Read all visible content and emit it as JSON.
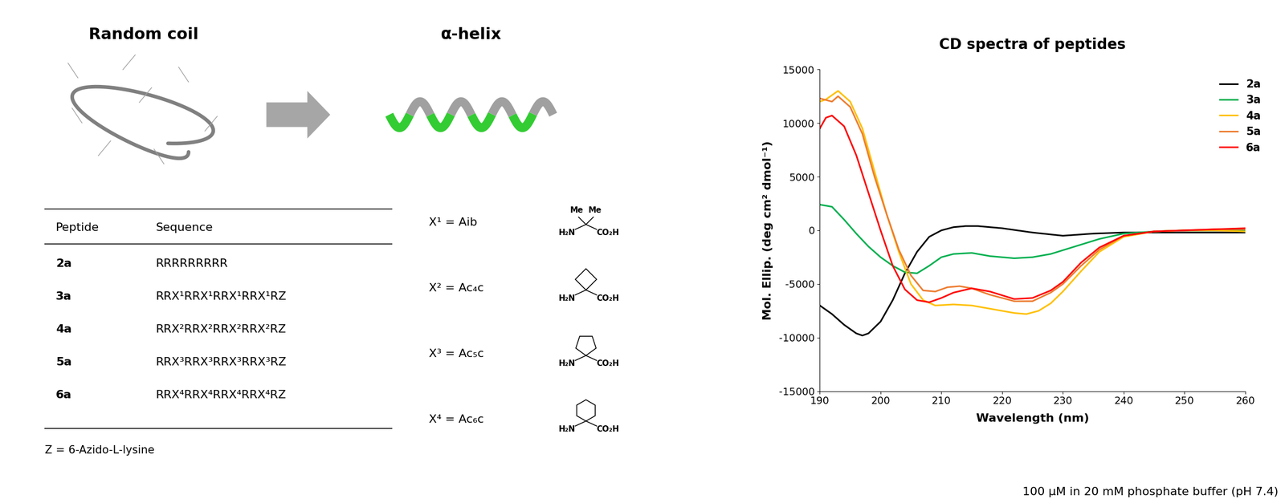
{
  "chart_data": {
    "type": "line",
    "title": "CD spectra of peptides",
    "xlabel": "Wavelength (nm)",
    "ylabel": "Mol. Ellip. (deg cm² dmol⁻¹)",
    "note": "100 µM in 20 mM phosphate buffer (pH 7.4)",
    "xlim": [
      190,
      260
    ],
    "xticks": [
      190,
      200,
      210,
      220,
      230,
      240,
      250,
      260
    ],
    "ylim": [
      -15000,
      15000
    ],
    "yticks": [
      -15000,
      -10000,
      -5000,
      0,
      5000,
      10000,
      15000
    ],
    "grid": false,
    "legend": "upper right",
    "series": [
      {
        "name": "2a",
        "color": "#000000",
        "x": [
          190,
          192,
          194,
          196,
          197,
          198,
          200,
          202,
          204,
          206,
          208,
          210,
          212,
          214,
          216,
          220,
          225,
          230,
          235,
          240,
          245,
          250,
          255,
          260
        ],
        "values": [
          -7000,
          -7800,
          -8800,
          -9600,
          -9800,
          -9600,
          -8500,
          -6500,
          -4000,
          -2000,
          -600,
          0,
          300,
          400,
          400,
          200,
          -200,
          -500,
          -300,
          -200,
          -200,
          -200,
          -200,
          -200
        ]
      },
      {
        "name": "3a",
        "color": "#00b050",
        "x": [
          190,
          192,
          194,
          196,
          198,
          200,
          202,
          204,
          206,
          208,
          210,
          212,
          215,
          218,
          222,
          225,
          228,
          232,
          236,
          240,
          245,
          250,
          255,
          260
        ],
        "values": [
          2400,
          2200,
          1000,
          -300,
          -1500,
          -2500,
          -3300,
          -3900,
          -4000,
          -3300,
          -2500,
          -2200,
          -2100,
          -2400,
          -2600,
          -2500,
          -2200,
          -1500,
          -800,
          -300,
          -100,
          0,
          0,
          0
        ]
      },
      {
        "name": "4a",
        "color": "#ffc000",
        "x": [
          190,
          191,
          193,
          195,
          197,
          199,
          201,
          203,
          205,
          207,
          209,
          212,
          215,
          218,
          222,
          224,
          226,
          228,
          230,
          233,
          236,
          240,
          245,
          250,
          255,
          260
        ],
        "values": [
          12000,
          12200,
          13000,
          12000,
          9500,
          5500,
          1500,
          -2000,
          -5000,
          -6500,
          -7000,
          -6900,
          -7000,
          -7300,
          -7700,
          -7800,
          -7500,
          -6800,
          -5700,
          -3800,
          -2000,
          -600,
          -100,
          0,
          0,
          -100
        ]
      },
      {
        "name": "5a",
        "color": "#ed7d31",
        "x": [
          190,
          192,
          193,
          195,
          197,
          199,
          201,
          203,
          205,
          207,
          209,
          211,
          213,
          215,
          218,
          222,
          225,
          228,
          230,
          233,
          236,
          240,
          245,
          250,
          255,
          260
        ],
        "values": [
          12300,
          12000,
          12500,
          11500,
          9000,
          5000,
          1500,
          -1800,
          -4200,
          -5600,
          -5700,
          -5300,
          -5200,
          -5400,
          -6000,
          -6600,
          -6600,
          -5800,
          -5000,
          -3300,
          -1800,
          -500,
          -100,
          0,
          100,
          100
        ]
      },
      {
        "name": "6a",
        "color": "#ff0000",
        "x": [
          190,
          191,
          192,
          194,
          196,
          198,
          200,
          202,
          204,
          206,
          208,
          210,
          212,
          215,
          218,
          222,
          225,
          228,
          230,
          233,
          236,
          240,
          245,
          250,
          255,
          260
        ],
        "values": [
          9500,
          10500,
          10700,
          9700,
          7000,
          3500,
          0,
          -3300,
          -5500,
          -6500,
          -6700,
          -6300,
          -5800,
          -5400,
          -5700,
          -6400,
          -6300,
          -5600,
          -4800,
          -3000,
          -1600,
          -500,
          -100,
          0,
          100,
          200
        ]
      }
    ]
  },
  "diagram": {
    "stages": [
      "Random coil",
      "α-helix"
    ],
    "table": {
      "header": [
        "Peptide",
        "Sequence"
      ],
      "rows": [
        [
          "2a",
          "RRRRRRRRR"
        ],
        [
          "3a",
          "RRX¹RRX¹RRX¹RRX¹RZ"
        ],
        [
          "4a",
          "RRX²RRX²RRX²RRX²RZ"
        ],
        [
          "5a",
          "RRX³RRX³RRX³RRX³RZ"
        ],
        [
          "6a",
          "RRX⁴RRX⁴RRX⁴RRX⁴RZ"
        ]
      ],
      "footnote": "Z = 6-Azido-L-lysine"
    },
    "residues": [
      "X¹ = Aib",
      "X² = Ac₄c",
      "X³ = Ac₅c",
      "X⁴ = Ac₆c"
    ],
    "structure_labels": {
      "methyl": "Me",
      "amine": "H₂N",
      "acid": "CO₂H"
    }
  }
}
